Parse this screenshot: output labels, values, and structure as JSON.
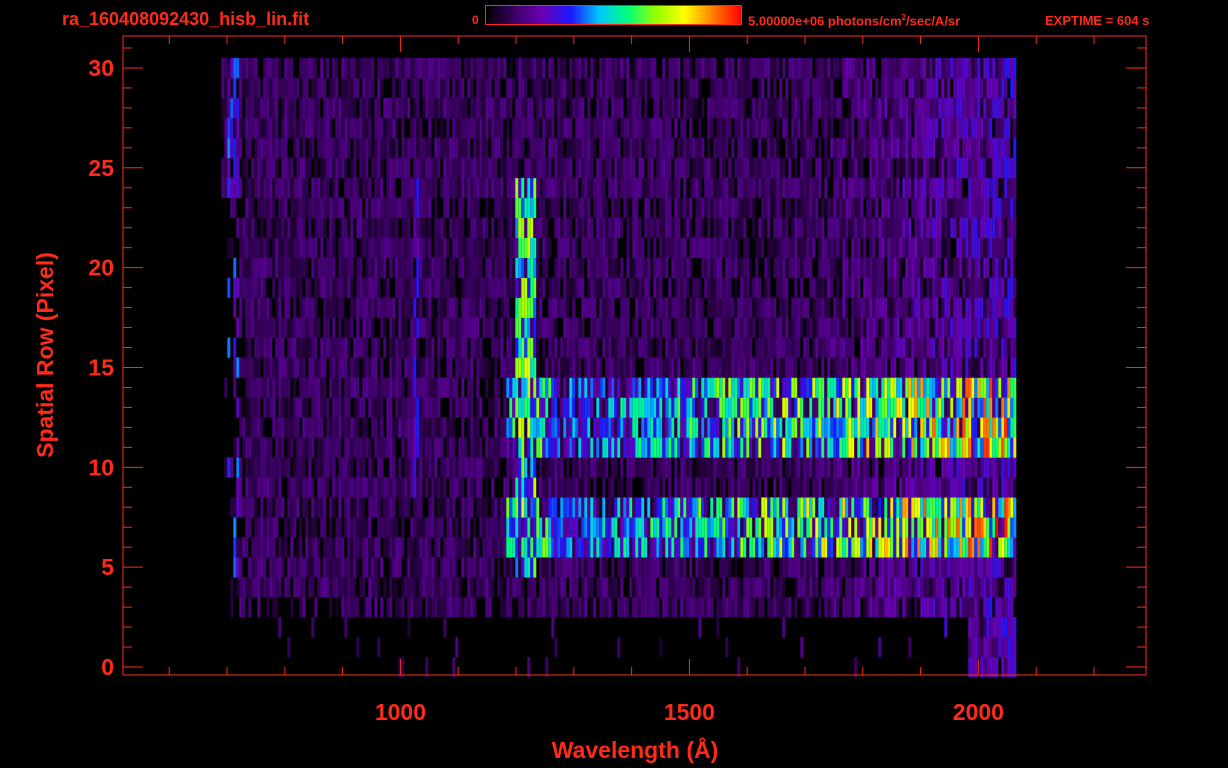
{
  "header": {
    "filename": "ra_160408092430_hisb_lin.fit",
    "colorbar_min": "0",
    "colorbar_max_prefix": "5.00000e+06 photons/cm",
    "colorbar_max_sup": "2",
    "colorbar_max_suffix": "/sec/A/sr",
    "exposure": "EXPTIME = 604 s"
  },
  "colors": {
    "axis": "#ff2a1a",
    "background": "#000000",
    "colormap": [
      "#000000",
      "#3c0064",
      "#6a00b4",
      "#1a1aff",
      "#00c8ff",
      "#00ff7a",
      "#96ff00",
      "#ffff00",
      "#ff8000",
      "#ff0000"
    ]
  },
  "chart_data": {
    "type": "heatmap",
    "xlabel": "Wavelength (Å)",
    "ylabel": "Spatial Row (Pixel)",
    "x_ticks": [
      1000,
      1500,
      2000
    ],
    "y_ticks": [
      0,
      5,
      10,
      15,
      20,
      25,
      30
    ],
    "xlim": [
      520,
      2290
    ],
    "ylim": [
      -0.4,
      31.6
    ],
    "colorbar_range": [
      0,
      5000000
    ],
    "data_extent": {
      "x": [
        690,
        2070
      ],
      "rows": [
        0,
        30
      ]
    },
    "features": [
      {
        "label": "",
        "x_range": [
          1195,
          1235
        ],
        "rows": [
          5,
          24
        ],
        "level": 0.58
      },
      {
        "label": "",
        "x_range": [
          1180,
          2070
        ],
        "rows": [
          11,
          14
        ],
        "level": 0.55,
        "peak_x": 2020,
        "peak_level": 0.72
      },
      {
        "label": "",
        "x_range": [
          1180,
          2070
        ],
        "rows": [
          6,
          8
        ],
        "level": 0.55,
        "peak_x": 2020,
        "peak_level": 0.74
      },
      {
        "label": "",
        "x_range": [
          700,
          720
        ],
        "rows": [
          4,
          30
        ],
        "level": 0.3
      },
      {
        "label": "",
        "x_range": [
          1020,
          1030
        ],
        "rows": [
          9,
          24
        ],
        "level": 0.26
      }
    ]
  }
}
